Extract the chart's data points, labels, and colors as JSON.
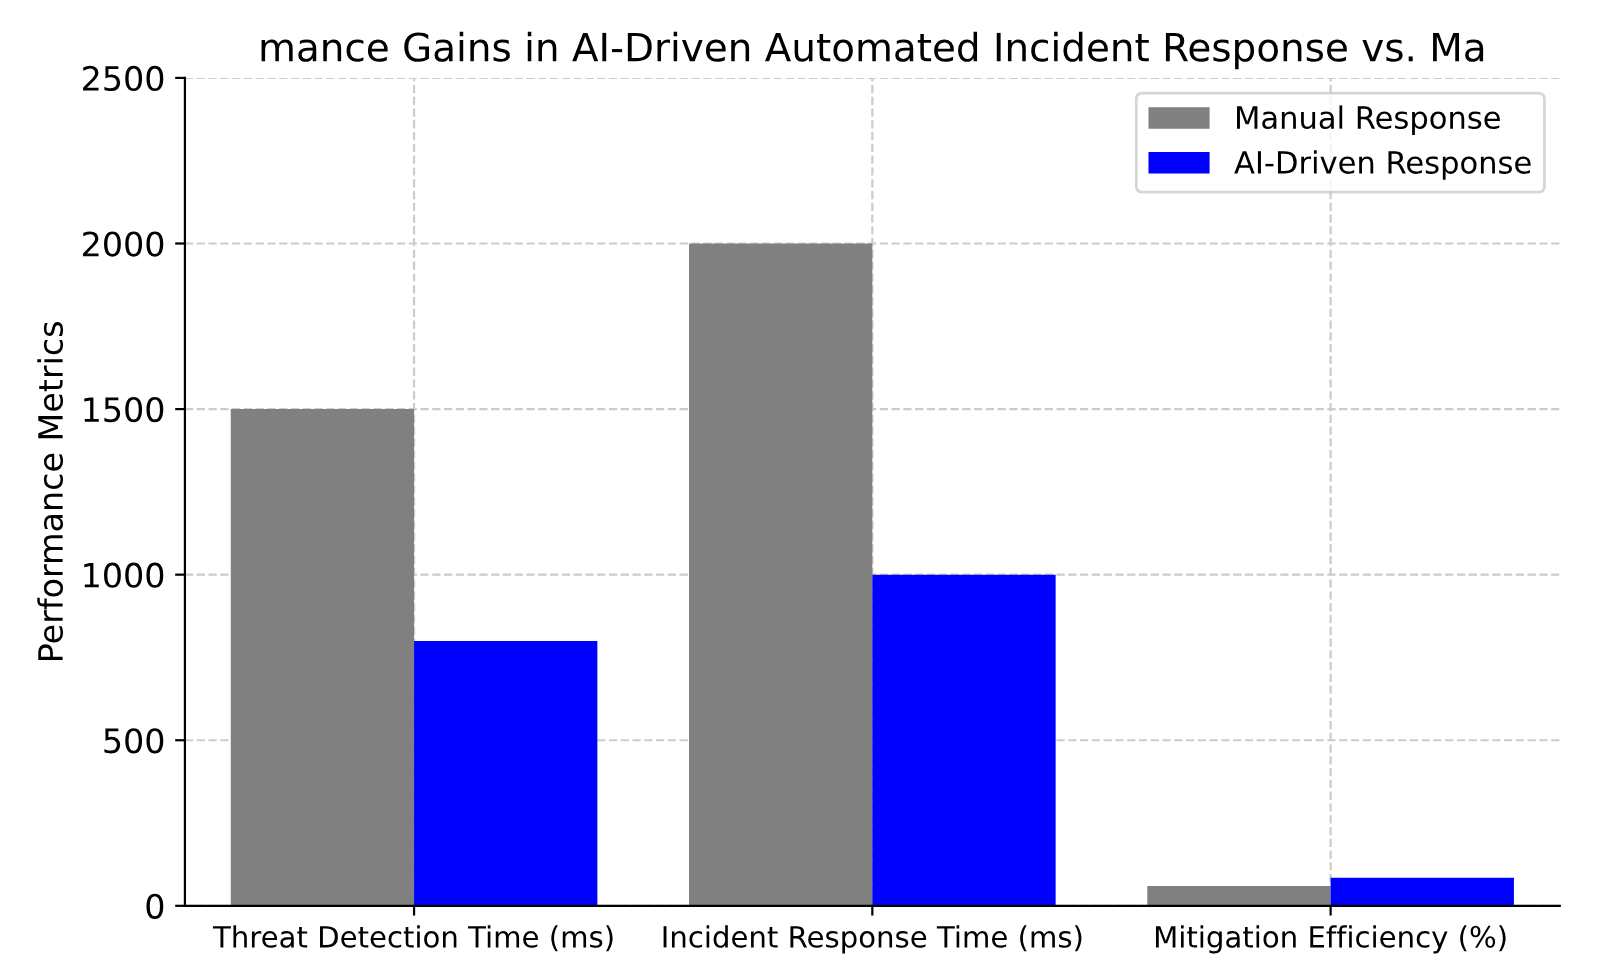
{
  "chart_data": {
    "type": "bar",
    "title": "mance Gains in AI-Driven Automated Incident Response vs. Ma",
    "ylabel": "Performance Metrics",
    "categories": [
      "Threat Detection Time (ms)",
      "Incident Response Time (ms)",
      "Mitigation Efficiency (%)"
    ],
    "series": [
      {
        "name": "Manual Response",
        "color": "#808080",
        "values": [
          1500,
          2000,
          60
        ]
      },
      {
        "name": "AI-Driven Response",
        "color": "#0000ff",
        "values": [
          800,
          1000,
          85
        ]
      }
    ],
    "ylim": [
      0,
      2500
    ],
    "yticks": [
      0,
      500,
      1000,
      1500,
      2000,
      2500
    ],
    "grid": true,
    "legend": "top right"
  }
}
